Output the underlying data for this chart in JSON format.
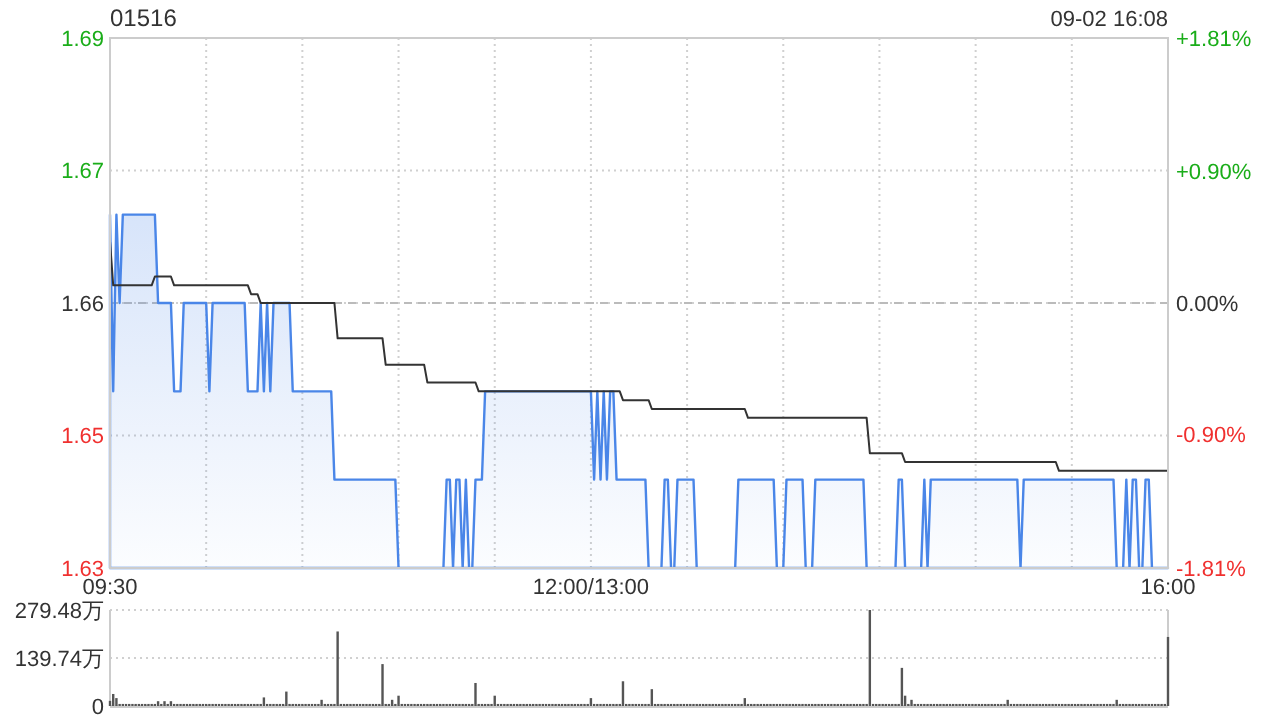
{
  "chart_data": [
    {
      "type": "line",
      "title": "01516",
      "subtitle": "09-02 16:08",
      "categories": [
        "09:30",
        null,
        null,
        null,
        null,
        null,
        null,
        null,
        null,
        null,
        null,
        null,
        null,
        null,
        null,
        null,
        null,
        null,
        null,
        null,
        null,
        null,
        null,
        null,
        null,
        null,
        null,
        null,
        null,
        null,
        null,
        null,
        null,
        null,
        null,
        null,
        null,
        null,
        null,
        null,
        null,
        null,
        null,
        null,
        null,
        null,
        null,
        null,
        null,
        null,
        null,
        null,
        null,
        null,
        null,
        null,
        null,
        null,
        null,
        null,
        null,
        null,
        null,
        null,
        null,
        null,
        null,
        null,
        null,
        null,
        null,
        null,
        null,
        null,
        null,
        null,
        null,
        null,
        null,
        null,
        null,
        null,
        null,
        null,
        null,
        null,
        null,
        null,
        null,
        null,
        null,
        null,
        null,
        null,
        null,
        null,
        null,
        null,
        null,
        null,
        null,
        null,
        null,
        null,
        null,
        null,
        null,
        null,
        null,
        null,
        null,
        null,
        null,
        null,
        null,
        null,
        null,
        null,
        null,
        null,
        null,
        null,
        null,
        null,
        null,
        null,
        null,
        null,
        null,
        null,
        null,
        null,
        null,
        null,
        null,
        null,
        null,
        null,
        null,
        null,
        null,
        null,
        null,
        null,
        null,
        null,
        null,
        null,
        null,
        null,
        "12:00/13:00",
        null,
        null,
        null,
        null,
        null,
        null,
        null,
        null,
        null,
        null,
        null,
        null,
        null,
        null,
        null,
        null,
        null,
        null,
        null,
        null,
        null,
        null,
        null,
        null,
        null,
        null,
        null,
        null,
        null,
        null,
        null,
        null,
        null,
        null,
        null,
        null,
        null,
        null,
        null,
        null,
        null,
        null,
        null,
        null,
        null,
        null,
        null,
        null,
        null,
        null,
        null,
        null,
        null,
        null,
        null,
        null,
        null,
        null,
        null,
        null,
        null,
        null,
        null,
        null,
        null,
        null,
        null,
        null,
        null,
        null,
        null,
        null,
        null,
        null,
        null,
        null,
        null,
        null,
        null,
        null,
        null,
        null,
        null,
        null,
        null,
        null,
        null,
        null,
        null,
        null,
        null,
        null,
        null,
        null,
        null,
        null,
        null,
        null,
        null,
        null,
        null,
        null,
        null,
        null,
        null,
        null,
        null,
        null,
        null,
        null,
        null,
        null,
        null,
        null,
        null,
        null,
        null,
        null,
        null,
        null,
        null,
        null,
        null,
        null,
        null,
        null,
        null,
        null,
        null,
        null,
        null,
        null,
        null,
        null,
        null,
        null,
        null,
        null,
        null,
        null,
        null,
        null,
        null,
        null,
        null,
        null,
        null,
        null,
        null,
        null,
        null,
        null,
        null,
        null,
        null,
        null,
        null,
        null,
        null,
        null,
        null,
        null,
        null,
        null,
        null,
        null,
        null,
        null,
        null,
        null,
        null,
        null,
        null,
        null,
        null,
        null,
        null,
        null,
        null,
        "16:00"
      ],
      "ylim": [
        1.63,
        1.69
      ],
      "yticks": [
        {
          "value": 1.63,
          "label": "1.63"
        },
        {
          "value": 1.645,
          "label": "1.65"
        },
        {
          "value": 1.66,
          "label": "1.66"
        },
        {
          "value": 1.675,
          "label": "1.67"
        },
        {
          "value": 1.69,
          "label": "1.69"
        }
      ],
      "y2lim": [
        -1.81,
        1.81
      ],
      "y2ticks": [
        {
          "value": -1.81,
          "label": "-1.81%"
        },
        {
          "value": -0.9,
          "label": "-0.90%"
        },
        {
          "value": 0,
          "label": "0.00%"
        },
        {
          "value": 0.9,
          "label": "+0.90%"
        },
        {
          "value": 1.81,
          "label": "+1.81%"
        }
      ],
      "grid": true,
      "ref_lines": [
        {
          "axis": "y",
          "value": 1.66,
          "color": "#bbbbbb",
          "line_style": "dashed"
        }
      ],
      "series": [
        {
          "type": "area",
          "color": "#4a86e8",
          "values": [
            1.67,
            1.65,
            1.67,
            1.66,
            1.67,
            1.67,
            1.67,
            1.67,
            1.67,
            1.67,
            1.67,
            1.67,
            1.67,
            1.67,
            1.67,
            1.66,
            1.66,
            1.66,
            1.66,
            1.66,
            1.65,
            1.65,
            1.65,
            1.66,
            1.66,
            1.66,
            1.66,
            1.66,
            1.66,
            1.66,
            1.66,
            1.65,
            1.66,
            1.66,
            1.66,
            1.66,
            1.66,
            1.66,
            1.66,
            1.66,
            1.66,
            1.66,
            1.66,
            1.65,
            1.65,
            1.65,
            1.65,
            1.66,
            1.65,
            1.66,
            1.65,
            1.66,
            1.66,
            1.66,
            1.66,
            1.66,
            1.66,
            1.65,
            1.65,
            1.65,
            1.65,
            1.65,
            1.65,
            1.65,
            1.65,
            1.65,
            1.65,
            1.65,
            1.65,
            1.65,
            1.64,
            1.64,
            1.64,
            1.64,
            1.64,
            1.64,
            1.64,
            1.64,
            1.64,
            1.64,
            1.64,
            1.64,
            1.64,
            1.64,
            1.64,
            1.64,
            1.64,
            1.64,
            1.64,
            1.64,
            1.63,
            1.63,
            1.63,
            1.63,
            1.63,
            1.63,
            1.63,
            1.63,
            1.63,
            1.63,
            1.63,
            1.63,
            1.63,
            1.63,
            1.63,
            1.64,
            1.64,
            1.63,
            1.64,
            1.64,
            1.63,
            1.64,
            1.63,
            1.63,
            1.64,
            1.64,
            1.64,
            1.65,
            1.65,
            1.65,
            1.65,
            1.65,
            1.65,
            1.65,
            1.65,
            1.65,
            1.65,
            1.65,
            1.65,
            1.65,
            1.65,
            1.65,
            1.65,
            1.65,
            1.65,
            1.65,
            1.65,
            1.65,
            1.65,
            1.65,
            1.65,
            1.65,
            1.65,
            1.65,
            1.65,
            1.65,
            1.65,
            1.65,
            1.65,
            1.65,
            1.65,
            1.64,
            1.65,
            1.64,
            1.65,
            1.64,
            1.65,
            1.65,
            1.64,
            1.64,
            1.64,
            1.64,
            1.64,
            1.64,
            1.64,
            1.64,
            1.64,
            1.64,
            1.63,
            1.63,
            1.63,
            1.63,
            1.63,
            1.64,
            1.64,
            1.63,
            1.63,
            1.64,
            1.64,
            1.64,
            1.64,
            1.64,
            1.64,
            1.63,
            1.63,
            1.63,
            1.63,
            1.63,
            1.63,
            1.63,
            1.63,
            1.63,
            1.63,
            1.63,
            1.63,
            1.63,
            1.64,
            1.64,
            1.64,
            1.64,
            1.64,
            1.64,
            1.64,
            1.64,
            1.64,
            1.64,
            1.64,
            1.64,
            1.63,
            1.63,
            1.63,
            1.64,
            1.64,
            1.64,
            1.64,
            1.64,
            1.64,
            1.63,
            1.63,
            1.63,
            1.64,
            1.64,
            1.64,
            1.64,
            1.64,
            1.64,
            1.64,
            1.64,
            1.64,
            1.64,
            1.64,
            1.64,
            1.64,
            1.64,
            1.64,
            1.64,
            1.63,
            1.63,
            1.63,
            1.63,
            1.63,
            1.63,
            1.63,
            1.63,
            1.63,
            1.63,
            1.64,
            1.64,
            1.63,
            1.63,
            1.63,
            1.63,
            1.63,
            1.63,
            1.64,
            1.63,
            1.64,
            1.64,
            1.64,
            1.64,
            1.64,
            1.64,
            1.64,
            1.64,
            1.64,
            1.64,
            1.64,
            1.64,
            1.64,
            1.64,
            1.64,
            1.64,
            1.64,
            1.64,
            1.64,
            1.64,
            1.64,
            1.64,
            1.64,
            1.64,
            1.64,
            1.64,
            1.64,
            1.64,
            1.63,
            1.64,
            1.64,
            1.64,
            1.64,
            1.64,
            1.64,
            1.64,
            1.64,
            1.64,
            1.64,
            1.64,
            1.64,
            1.64,
            1.64,
            1.64,
            1.64,
            1.64,
            1.64,
            1.64,
            1.64,
            1.64,
            1.64,
            1.64,
            1.64,
            1.64,
            1.64,
            1.64,
            1.64,
            1.64,
            1.63,
            1.63,
            1.63,
            1.64,
            1.63,
            1.64,
            1.64,
            1.63,
            1.63,
            1.64,
            1.64,
            1.63,
            1.63,
            1.63,
            1.63,
            1.63,
            1.63
          ]
        },
        {
          "type": "line",
          "color": "#333333",
          "values": [
            1.667,
            1.662,
            1.662,
            1.662,
            1.662,
            1.662,
            1.662,
            1.662,
            1.662,
            1.662,
            1.662,
            1.662,
            1.662,
            1.662,
            1.663,
            1.663,
            1.663,
            1.663,
            1.663,
            1.663,
            1.662,
            1.662,
            1.662,
            1.662,
            1.662,
            1.662,
            1.662,
            1.662,
            1.662,
            1.662,
            1.662,
            1.662,
            1.662,
            1.662,
            1.662,
            1.662,
            1.662,
            1.662,
            1.662,
            1.662,
            1.662,
            1.662,
            1.662,
            1.662,
            1.661,
            1.661,
            1.661,
            1.66,
            1.66,
            1.66,
            1.66,
            1.66,
            1.66,
            1.66,
            1.66,
            1.66,
            1.66,
            1.66,
            1.66,
            1.66,
            1.66,
            1.66,
            1.66,
            1.66,
            1.66,
            1.66,
            1.66,
            1.66,
            1.66,
            1.66,
            1.66,
            1.656,
            1.656,
            1.656,
            1.656,
            1.656,
            1.656,
            1.656,
            1.656,
            1.656,
            1.656,
            1.656,
            1.656,
            1.656,
            1.656,
            1.656,
            1.653,
            1.653,
            1.653,
            1.653,
            1.653,
            1.653,
            1.653,
            1.653,
            1.653,
            1.653,
            1.653,
            1.653,
            1.653,
            1.651,
            1.651,
            1.651,
            1.651,
            1.651,
            1.651,
            1.651,
            1.651,
            1.651,
            1.651,
            1.651,
            1.651,
            1.651,
            1.651,
            1.651,
            1.651,
            1.65,
            1.65,
            1.65,
            1.65,
            1.65,
            1.65,
            1.65,
            1.65,
            1.65,
            1.65,
            1.65,
            1.65,
            1.65,
            1.65,
            1.65,
            1.65,
            1.65,
            1.65,
            1.65,
            1.65,
            1.65,
            1.65,
            1.65,
            1.65,
            1.65,
            1.65,
            1.65,
            1.65,
            1.65,
            1.65,
            1.65,
            1.65,
            1.65,
            1.65,
            1.65,
            1.65,
            1.65,
            1.65,
            1.65,
            1.65,
            1.65,
            1.65,
            1.65,
            1.65,
            1.65,
            1.649,
            1.649,
            1.649,
            1.649,
            1.649,
            1.649,
            1.649,
            1.649,
            1.649,
            1.648,
            1.648,
            1.648,
            1.648,
            1.648,
            1.648,
            1.648,
            1.648,
            1.648,
            1.648,
            1.648,
            1.648,
            1.648,
            1.648,
            1.648,
            1.648,
            1.648,
            1.648,
            1.648,
            1.648,
            1.648,
            1.648,
            1.648,
            1.648,
            1.648,
            1.648,
            1.648,
            1.648,
            1.648,
            1.648,
            1.647,
            1.647,
            1.647,
            1.647,
            1.647,
            1.647,
            1.647,
            1.647,
            1.647,
            1.647,
            1.647,
            1.647,
            1.647,
            1.647,
            1.647,
            1.647,
            1.647,
            1.647,
            1.647,
            1.647,
            1.647,
            1.647,
            1.647,
            1.647,
            1.647,
            1.647,
            1.647,
            1.647,
            1.647,
            1.647,
            1.647,
            1.647,
            1.647,
            1.647,
            1.647,
            1.647,
            1.647,
            1.647,
            1.643,
            1.643,
            1.643,
            1.643,
            1.643,
            1.643,
            1.643,
            1.643,
            1.643,
            1.643,
            1.643,
            1.642,
            1.642,
            1.642,
            1.642,
            1.642,
            1.642,
            1.642,
            1.642,
            1.642,
            1.642,
            1.642,
            1.642,
            1.642,
            1.642,
            1.642,
            1.642,
            1.642,
            1.642,
            1.642,
            1.642,
            1.642,
            1.642,
            1.642,
            1.642,
            1.642,
            1.642,
            1.642,
            1.642,
            1.642,
            1.642,
            1.642,
            1.642,
            1.642,
            1.642,
            1.642,
            1.642,
            1.642,
            1.642,
            1.642,
            1.642,
            1.642,
            1.642,
            1.642,
            1.642,
            1.642,
            1.642,
            1.642,
            1.642,
            1.641,
            1.641,
            1.641,
            1.641,
            1.641,
            1.641,
            1.641,
            1.641,
            1.641,
            1.641,
            1.641,
            1.641,
            1.641,
            1.641,
            1.641,
            1.641,
            1.641,
            1.641,
            1.641,
            1.641,
            1.641,
            1.641,
            1.641,
            1.641,
            1.641,
            1.641,
            1.641,
            1.641,
            1.641,
            1.641,
            1.641,
            1.641,
            1.641,
            1.641,
            1.641
          ]
        }
      ]
    },
    {
      "type": "bar",
      "color": "#555555",
      "tick_labels": "y",
      "grid": "y",
      "categories": [
        null,
        null,
        null,
        null,
        null,
        null,
        null,
        null,
        null,
        null,
        null,
        null,
        null,
        null,
        null,
        null,
        null,
        null,
        null,
        null,
        null,
        null,
        null,
        null,
        null,
        null,
        null,
        null,
        null,
        null,
        null,
        null,
        null,
        null,
        null,
        null,
        null,
        null,
        null,
        null,
        null,
        null,
        null,
        null,
        null,
        null,
        null,
        null,
        null,
        null,
        null,
        null,
        null,
        null,
        null,
        null,
        null,
        null,
        null,
        null,
        null,
        null,
        null,
        null,
        null,
        null,
        null,
        null,
        null,
        null,
        null,
        null,
        null,
        null,
        null,
        null,
        null,
        null,
        null,
        null,
        null,
        null,
        null,
        null,
        null,
        null,
        null,
        null,
        null,
        null,
        null,
        null,
        null,
        null,
        null,
        null,
        null,
        null,
        null,
        null,
        null,
        null,
        null,
        null,
        null,
        null,
        null,
        null,
        null,
        null,
        null,
        null,
        null,
        null,
        null,
        null,
        null,
        null,
        null,
        null,
        null,
        null,
        null,
        null,
        null,
        null,
        null,
        null,
        null,
        null,
        null,
        null,
        null,
        null,
        null,
        null,
        null,
        null,
        null,
        null,
        null,
        null,
        null,
        null,
        null,
        null,
        null,
        null,
        null,
        null,
        null,
        null,
        null,
        null,
        null,
        null,
        null,
        null,
        null,
        null,
        null,
        null,
        null,
        null,
        null,
        null,
        null,
        null,
        null,
        null,
        null,
        null,
        null,
        null,
        null,
        null,
        null,
        null,
        null,
        null,
        null,
        null,
        null,
        null,
        null,
        null,
        null,
        null,
        null,
        null,
        null,
        null,
        null,
        null,
        null,
        null,
        null,
        null,
        null,
        null,
        null,
        null,
        null,
        null,
        null,
        null,
        null,
        null,
        null,
        null,
        null,
        null,
        null,
        null,
        null,
        null,
        null,
        null,
        null,
        null,
        null,
        null,
        null,
        null,
        null,
        null,
        null,
        null,
        null,
        null,
        null,
        null,
        null,
        null,
        null,
        null,
        null,
        null,
        null,
        null,
        null,
        null,
        null,
        null,
        null,
        null,
        null,
        null,
        null,
        null,
        null,
        null,
        null,
        null,
        null,
        null,
        null,
        null,
        null,
        null,
        null,
        null,
        null,
        null,
        null,
        null,
        null,
        null,
        null,
        null,
        null,
        null,
        null,
        null,
        null,
        null,
        null,
        null,
        null,
        null,
        null,
        null,
        null,
        null,
        null,
        null,
        null,
        null,
        null,
        null,
        null,
        null,
        null,
        null,
        null,
        null,
        null,
        null,
        null,
        null,
        null,
        null,
        null,
        null,
        null,
        null,
        null,
        null,
        null,
        null,
        null,
        null,
        null,
        null,
        null,
        null,
        null,
        null,
        null,
        null,
        null,
        null,
        null,
        null,
        null,
        null,
        null,
        null,
        null,
        null,
        null
      ],
      "ylim": [
        0,
        279.48
      ],
      "yticks": [
        {
          "value": 0,
          "label": "0"
        },
        {
          "value": 139.74,
          "label": "139.74万"
        },
        {
          "value": 279.48,
          "label": "279.48万"
        }
      ],
      "values": [
        15,
        35,
        23,
        6,
        6,
        6,
        6,
        6,
        6,
        6,
        6,
        6,
        6,
        6,
        6,
        14,
        6,
        14,
        6,
        14,
        6,
        6,
        6,
        6,
        6,
        6,
        6,
        6,
        6,
        6,
        6,
        6,
        6,
        6,
        6,
        6,
        6,
        6,
        6,
        6,
        6,
        6,
        6,
        6,
        6,
        6,
        6,
        6,
        25,
        6,
        6,
        6,
        6,
        6,
        6,
        42,
        6,
        6,
        6,
        6,
        6,
        6,
        6,
        6,
        6,
        6,
        18,
        6,
        6,
        6,
        6,
        217,
        6,
        6,
        6,
        6,
        6,
        6,
        6,
        6,
        6,
        6,
        6,
        6,
        6,
        122,
        6,
        6,
        18,
        6,
        30,
        6,
        6,
        6,
        6,
        6,
        6,
        6,
        6,
        6,
        6,
        6,
        6,
        6,
        6,
        6,
        6,
        6,
        6,
        6,
        6,
        6,
        6,
        6,
        67,
        6,
        6,
        6,
        6,
        6,
        30,
        6,
        6,
        6,
        6,
        6,
        6,
        6,
        6,
        6,
        6,
        6,
        6,
        6,
        6,
        6,
        6,
        6,
        6,
        6,
        6,
        6,
        6,
        6,
        6,
        6,
        6,
        6,
        6,
        6,
        23,
        6,
        6,
        6,
        6,
        6,
        6,
        6,
        6,
        6,
        72,
        6,
        6,
        6,
        6,
        6,
        6,
        6,
        6,
        49,
        6,
        6,
        6,
        6,
        6,
        6,
        6,
        6,
        6,
        6,
        6,
        6,
        6,
        6,
        6,
        6,
        6,
        6,
        6,
        6,
        6,
        6,
        6,
        6,
        6,
        6,
        6,
        6,
        23,
        6,
        6,
        6,
        6,
        6,
        6,
        6,
        6,
        6,
        6,
        6,
        6,
        6,
        6,
        6,
        6,
        6,
        6,
        6,
        6,
        6,
        6,
        6,
        6,
        6,
        6,
        6,
        6,
        6,
        6,
        6,
        6,
        6,
        6,
        6,
        6,
        6,
        6,
        279.48,
        6,
        6,
        6,
        6,
        6,
        6,
        6,
        6,
        6,
        111,
        30,
        6,
        18,
        6,
        6,
        6,
        6,
        6,
        6,
        6,
        6,
        6,
        6,
        6,
        6,
        6,
        6,
        6,
        6,
        6,
        6,
        6,
        6,
        6,
        6,
        6,
        6,
        6,
        6,
        6,
        6,
        6,
        18,
        6,
        6,
        6,
        6,
        6,
        6,
        6,
        6,
        6,
        6,
        6,
        6,
        6,
        6,
        6,
        6,
        6,
        6,
        6,
        6,
        6,
        6,
        6,
        6,
        6,
        6,
        6,
        6,
        6,
        6,
        6,
        6,
        6,
        18,
        6,
        6,
        6,
        6,
        6,
        6,
        6,
        6,
        6,
        6,
        6,
        6,
        6,
        6,
        6,
        201
      ]
    }
  ]
}
